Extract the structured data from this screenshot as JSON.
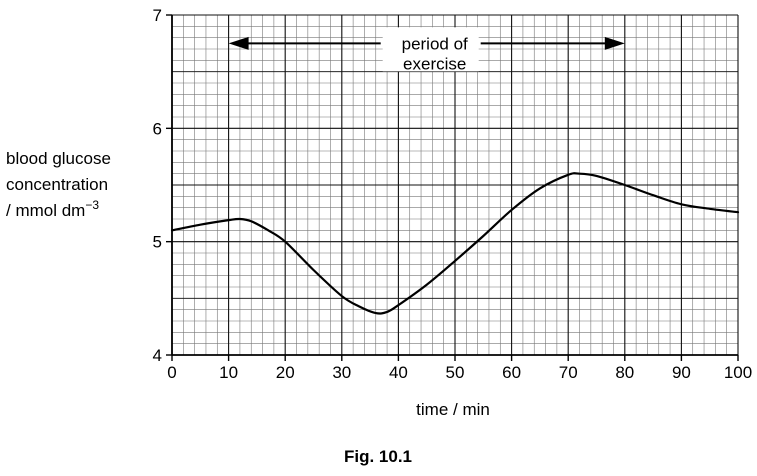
{
  "chart_data": {
    "type": "line",
    "xlabel": "time / min",
    "ylabel_lines": [
      "blood glucose",
      "concentration",
      "/ mmol dm"
    ],
    "ylabel_superscript": "−3",
    "xlim": [
      0,
      100
    ],
    "ylim": [
      4,
      7
    ],
    "x_ticks": [
      0,
      10,
      20,
      30,
      40,
      50,
      60,
      70,
      80,
      90,
      100
    ],
    "y_ticks": [
      4,
      5,
      6,
      7
    ],
    "grid": true,
    "series": [
      {
        "x": [
          0,
          5,
          10,
          12,
          14,
          17,
          20,
          25,
          30,
          33,
          36,
          38,
          40,
          45,
          50,
          55,
          60,
          65,
          70,
          72,
          75,
          80,
          85,
          90,
          95,
          100
        ],
        "y": [
          5.1,
          5.15,
          5.19,
          5.2,
          5.18,
          5.1,
          5.0,
          4.75,
          4.52,
          4.43,
          4.37,
          4.38,
          4.44,
          4.62,
          4.83,
          5.05,
          5.28,
          5.47,
          5.59,
          5.6,
          5.58,
          5.5,
          5.41,
          5.33,
          5.29,
          5.26
        ]
      }
    ],
    "annotation": {
      "text_lines": [
        "period of",
        "exercise"
      ],
      "x_start": 10,
      "x_end": 80,
      "y": 6.75
    },
    "caption": "Fig. 10.1"
  }
}
